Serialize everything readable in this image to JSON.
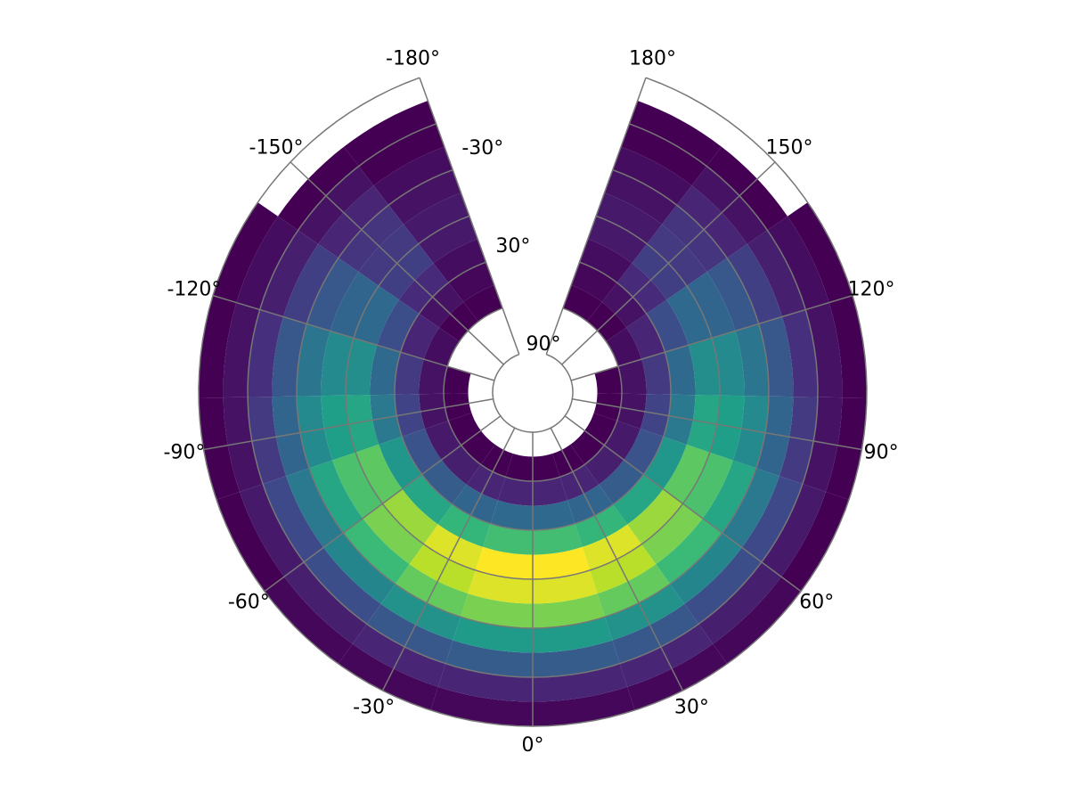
{
  "chart_data": {
    "type": "polar_heatmap",
    "colormap": "viridis",
    "xlim": [
      -180,
      180
    ],
    "ylim": [
      90,
      -90
    ],
    "lon_bins": [
      -180,
      -160,
      -140,
      -120,
      -100,
      -80,
      -60,
      -40,
      -20,
      0,
      20,
      40,
      60,
      80,
      100,
      120,
      140,
      160,
      180
    ],
    "lat_bins": [
      -90,
      -75,
      -60,
      -45,
      -30,
      -15,
      0,
      15,
      30,
      45,
      60,
      75,
      90
    ],
    "values": [
      [
        0,
        0,
        1,
        1,
        1,
        1,
        2,
        2,
        2,
        2,
        2,
        2,
        1,
        1,
        1,
        1,
        0,
        0
      ],
      [
        1,
        1,
        3,
        4,
        4,
        5,
        6,
        7,
        7,
        7,
        7,
        6,
        5,
        4,
        4,
        3,
        1,
        1
      ],
      [
        1,
        4,
        6,
        9,
        11,
        14,
        15,
        17,
        18,
        18,
        17,
        15,
        14,
        11,
        9,
        6,
        4,
        1
      ],
      [
        3,
        7,
        12,
        17,
        20,
        25,
        28,
        31,
        33,
        33,
        31,
        28,
        25,
        20,
        17,
        12,
        7,
        3
      ],
      [
        4,
        10,
        17,
        24,
        29,
        36,
        41,
        46,
        48,
        48,
        46,
        41,
        36,
        29,
        24,
        17,
        10,
        4
      ],
      [
        5,
        11,
        20,
        29,
        34,
        43,
        48,
        54,
        57,
        57,
        54,
        48,
        43,
        34,
        29,
        20,
        11,
        5
      ],
      [
        5,
        12,
        21,
        30,
        36,
        45,
        51,
        57,
        60,
        60,
        57,
        51,
        45,
        36,
        30,
        21,
        12,
        5
      ],
      [
        3,
        8,
        15,
        21,
        25,
        32,
        36,
        40,
        42,
        42,
        40,
        36,
        32,
        25,
        21,
        15,
        8,
        3
      ],
      [
        2,
        4,
        7,
        11,
        13,
        16,
        18,
        20,
        21,
        21,
        20,
        18,
        16,
        13,
        11,
        7,
        4,
        2
      ],
      [
        1,
        1,
        3,
        4,
        4,
        5,
        6,
        7,
        7,
        7,
        7,
        6,
        5,
        4,
        4,
        3,
        1,
        1
      ],
      [
        0,
        0,
        0,
        1,
        1,
        1,
        1,
        1,
        1,
        1,
        1,
        1,
        1,
        1,
        1,
        0,
        0,
        0
      ],
      [
        0,
        0,
        0,
        0,
        0,
        0,
        0,
        0,
        0,
        0,
        0,
        0,
        0,
        0,
        0,
        0,
        0,
        0
      ]
    ],
    "xticks": [
      {
        "value": -180,
        "label": "-180°"
      },
      {
        "value": -150,
        "label": "-150°"
      },
      {
        "value": -120,
        "label": "-120°"
      },
      {
        "value": -90,
        "label": "-90°"
      },
      {
        "value": -60,
        "label": "-60°"
      },
      {
        "value": -30,
        "label": "-30°"
      },
      {
        "value": 0,
        "label": "0°"
      },
      {
        "value": 30,
        "label": "30°"
      },
      {
        "value": 60,
        "label": "60°"
      },
      {
        "value": 90,
        "label": "90°"
      },
      {
        "value": 120,
        "label": "120°"
      },
      {
        "value": 150,
        "label": "150°"
      },
      {
        "value": 180,
        "label": "180°"
      }
    ],
    "yticks": [
      {
        "value": 90,
        "label": "90°"
      },
      {
        "value": 60,
        "label": null
      },
      {
        "value": 30,
        "label": "30°"
      },
      {
        "value": 0,
        "label": null
      },
      {
        "value": -30,
        "label": "-30°"
      },
      {
        "value": -60,
        "label": null
      },
      {
        "value": -90,
        "label": null
      }
    ]
  }
}
